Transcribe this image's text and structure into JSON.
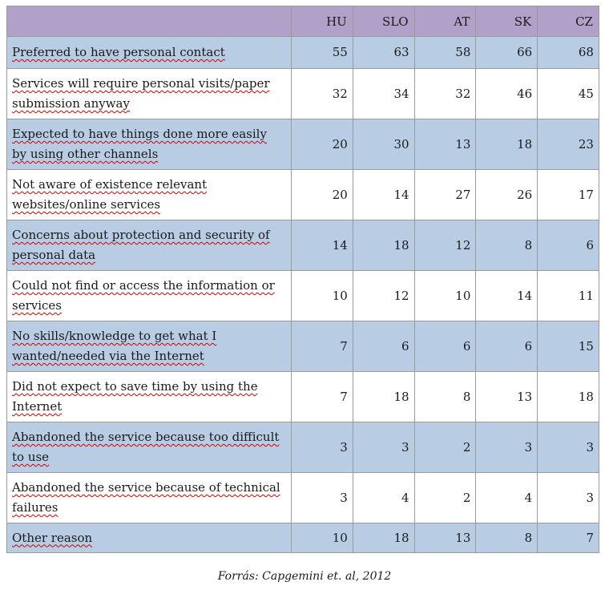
{
  "table": {
    "columns": [
      "",
      "HU",
      "SLO",
      "AT",
      "SK",
      "CZ"
    ],
    "rows": [
      {
        "label": "Preferred to have personal contact",
        "values": [
          "55",
          "63",
          "58",
          "66",
          "68"
        ]
      },
      {
        "label": "Services will require personal visits/paper submission anyway",
        "values": [
          "32",
          "34",
          "32",
          "46",
          "45"
        ]
      },
      {
        "label": "Expected to have things done more easily by using other channels",
        "values": [
          "20",
          "30",
          "13",
          "18",
          "23"
        ]
      },
      {
        "label": "Not aware of existence relevant websites/online services",
        "values": [
          "20",
          "14",
          "27",
          "26",
          "17"
        ]
      },
      {
        "label": "Concerns about protection and security of personal data",
        "values": [
          "14",
          "18",
          "12",
          "8",
          "6"
        ]
      },
      {
        "label": "Could not find or access the information or services",
        "values": [
          "10",
          "12",
          "10",
          "14",
          "11"
        ]
      },
      {
        "label": "No skills/knowledge to get what I wanted/needed via the Internet",
        "values": [
          "7",
          "6",
          "6",
          "6",
          "15"
        ]
      },
      {
        "label": "Did not expect to save time by using the Internet",
        "values": [
          "7",
          "18",
          "8",
          "13",
          "18"
        ]
      },
      {
        "label": "Abandoned the service because too difficult to use",
        "values": [
          "3",
          "3",
          "2",
          "3",
          "3"
        ]
      },
      {
        "label": "Abandoned the service because of technical failures",
        "values": [
          "3",
          "4",
          "2",
          "4",
          "3"
        ]
      },
      {
        "label": "Other reason",
        "values": [
          "10",
          "18",
          "13",
          "8",
          "7"
        ]
      }
    ]
  },
  "source": "Forrás: Capgemini et. al, 2012",
  "colors": {
    "header_bg": "#b1a0c7",
    "shaded_row_bg": "#b8cce4",
    "plain_row_bg": "#ffffff",
    "spellcheck_underline": "#d40000"
  }
}
